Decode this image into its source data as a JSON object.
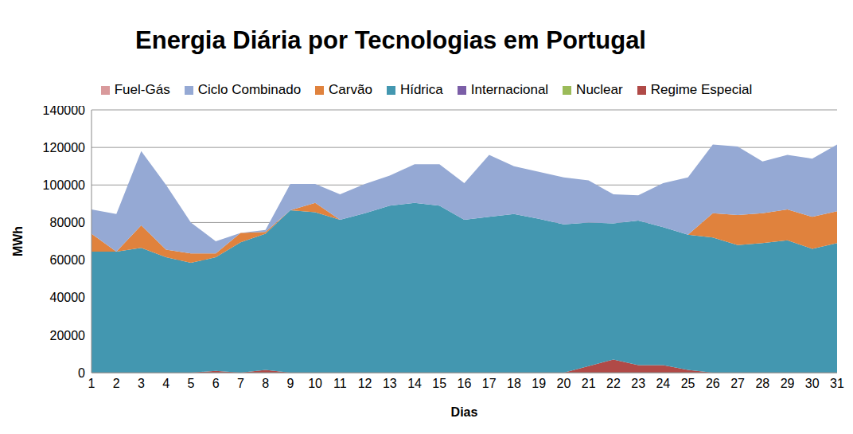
{
  "chart_data": {
    "type": "area",
    "title": "Energia Diária por Tecnologias em Portugal",
    "x_label": "Dias",
    "y_label": "MWh",
    "categories": [
      "1",
      "2",
      "3",
      "4",
      "5",
      "6",
      "7",
      "8",
      "9",
      "10",
      "11",
      "12",
      "13",
      "14",
      "15",
      "16",
      "17",
      "18",
      "19",
      "20",
      "21",
      "22",
      "23",
      "24",
      "25",
      "26",
      "27",
      "28",
      "29",
      "30",
      "31"
    ],
    "series": [
      {
        "name": "Fuel-Gás",
        "color": "#d99a9c",
        "values": [
          0,
          0,
          0,
          0,
          0,
          0,
          0,
          0,
          0,
          0,
          0,
          0,
          0,
          0,
          0,
          0,
          0,
          0,
          0,
          0,
          0,
          0,
          0,
          0,
          0,
          0,
          0,
          0,
          0,
          0,
          0
        ]
      },
      {
        "name": "Ciclo Combinado",
        "color": "#95a9d4",
        "values": [
          13000,
          20000,
          39500,
          34500,
          16500,
          6500,
          0,
          1000,
          14000,
          10000,
          13500,
          15500,
          16000,
          20500,
          22000,
          19500,
          33000,
          25500,
          25000,
          25000,
          22500,
          15500,
          13500,
          23500,
          30500,
          36500,
          36500,
          27500,
          29000,
          31000,
          35500
        ]
      },
      {
        "name": "Carvão",
        "color": "#e0823d",
        "values": [
          9500,
          0,
          12000,
          4000,
          5000,
          2000,
          5000,
          1000,
          0,
          5000,
          0,
          0,
          0,
          0,
          0,
          0,
          0,
          0,
          0,
          0,
          0,
          0,
          0,
          0,
          0,
          13000,
          16000,
          16000,
          16500,
          17000,
          17000
        ]
      },
      {
        "name": "Hídrica",
        "color": "#4397b0",
        "values": [
          64500,
          64500,
          66500,
          61500,
          58500,
          60500,
          69500,
          72500,
          86500,
          85500,
          81500,
          85000,
          89000,
          90500,
          89000,
          81500,
          83000,
          84500,
          82000,
          79000,
          76500,
          72500,
          77000,
          73500,
          72000,
          72000,
          68000,
          69000,
          70500,
          66000,
          69000
        ]
      },
      {
        "name": "Internacional",
        "color": "#7b5ea7",
        "values": [
          0,
          0,
          0,
          0,
          0,
          0,
          0,
          0,
          0,
          0,
          0,
          0,
          0,
          0,
          0,
          0,
          0,
          0,
          0,
          0,
          0,
          0,
          0,
          0,
          0,
          0,
          0,
          0,
          0,
          0,
          0
        ]
      },
      {
        "name": "Nuclear",
        "color": "#9bbb59",
        "values": [
          0,
          0,
          0,
          0,
          0,
          0,
          0,
          0,
          0,
          0,
          0,
          0,
          0,
          0,
          0,
          0,
          0,
          0,
          0,
          0,
          0,
          0,
          0,
          0,
          0,
          0,
          0,
          0,
          0,
          0,
          0
        ]
      },
      {
        "name": "Regime Especial",
        "color": "#b04a47",
        "values": [
          0,
          0,
          0,
          0,
          0,
          1000,
          0,
          1500,
          0,
          0,
          0,
          0,
          0,
          0,
          0,
          0,
          0,
          0,
          0,
          0,
          3500,
          7000,
          4000,
          4000,
          1500,
          0,
          0,
          0,
          0,
          0,
          0
        ]
      }
    ],
    "ylim": [
      0,
      140000
    ],
    "yticks": [
      0,
      20000,
      40000,
      60000,
      80000,
      100000,
      120000,
      140000
    ],
    "stacked": true,
    "grid": true,
    "legend": "top"
  }
}
